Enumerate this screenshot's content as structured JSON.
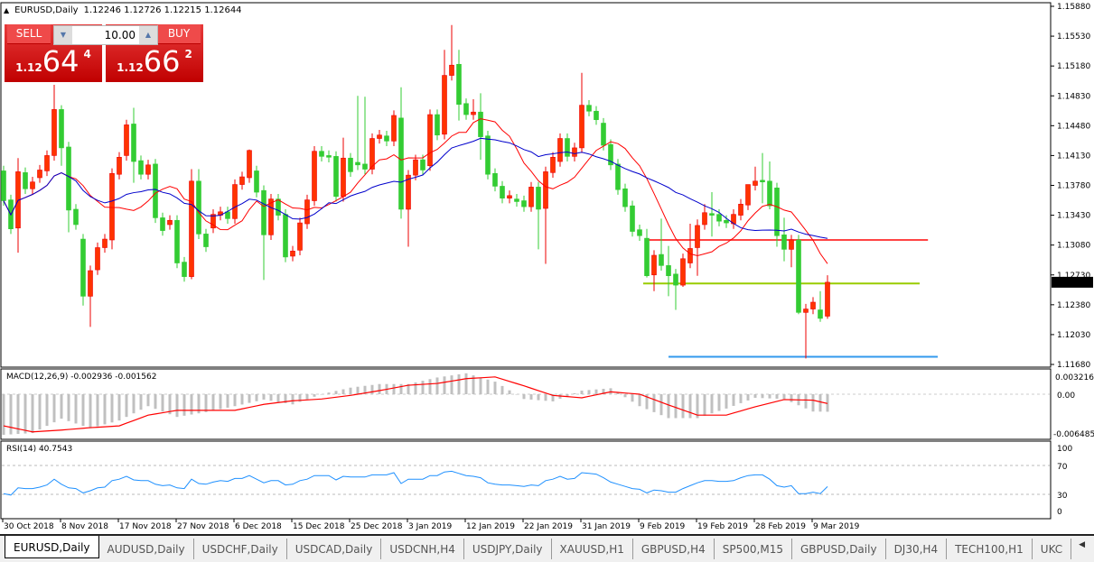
{
  "window": {
    "symbol_title": "EURUSD,Daily",
    "ohlc_readout": "1.12246 1.12726 1.12215 1.12644"
  },
  "trade_panel": {
    "sell_label": "SELL",
    "buy_label": "BUY",
    "lot_value": "10.00",
    "sell_price": {
      "prefix": "1.12",
      "big": "64",
      "small": "4"
    },
    "buy_price": {
      "prefix": "1.12",
      "big": "66",
      "small": "2"
    }
  },
  "price_axis": {
    "labels": [
      "1.15880",
      "1.15530",
      "1.15180",
      "1.14830",
      "1.14480",
      "1.14130",
      "1.13780",
      "1.13430",
      "1.13080",
      "1.12730",
      "1.12380",
      "1.12030",
      "1.11680"
    ],
    "current_price": "1.12644"
  },
  "indicators": {
    "macd": {
      "label": "MACD(12,26,9) -0.002936 -0.001562",
      "axis_labels": [
        "0.003216",
        "0.00",
        "-0.006485"
      ]
    },
    "rsi": {
      "label": "RSI(14) 40.7543",
      "axis_labels": [
        "100",
        "70",
        "30",
        "0"
      ]
    }
  },
  "time_axis": {
    "labels": [
      "30 Oct 2018",
      "8 Nov 2018",
      "17 Nov 2018",
      "27 Nov 2018",
      "6 Dec 2018",
      "15 Dec 2018",
      "25 Dec 2018",
      "3 Jan 2019",
      "12 Jan 2019",
      "22 Jan 2019",
      "31 Jan 2019",
      "9 Feb 2019",
      "19 Feb 2019",
      "28 Feb 2019",
      "9 Mar 2019"
    ]
  },
  "tabs": [
    {
      "label": "EURUSD,Daily",
      "active": true
    },
    {
      "label": "AUDUSD,Daily"
    },
    {
      "label": "USDCHF,Daily"
    },
    {
      "label": "USDCAD,Daily"
    },
    {
      "label": "USDCNH,H4"
    },
    {
      "label": "USDJPY,Daily"
    },
    {
      "label": "XAUUSD,H1"
    },
    {
      "label": "GBPUSD,H4"
    },
    {
      "label": "SP500,M15"
    },
    {
      "label": "GBPUSD,Daily"
    },
    {
      "label": "DJ30,H4"
    },
    {
      "label": "TECH100,H1"
    },
    {
      "label": "UKC"
    }
  ],
  "colors": {
    "bull": "#ff3300",
    "bear": "#33cc33",
    "ma_fast": "#ff0000",
    "ma_slow": "#0000cc",
    "macd_hist": "#c0c0c0",
    "macd_signal": "#ff0000",
    "rsi": "#1e90ff",
    "sell_buy": "#d42020"
  },
  "chart_data": {
    "type": "candlestick",
    "symbol": "EURUSD",
    "timeframe": "Daily",
    "ylim": [
      1.1168,
      1.1588
    ],
    "ohlc_open_close": [
      [
        1.1395,
        1.136
      ],
      [
        1.1361,
        1.1327
      ],
      [
        1.1328,
        1.1394
      ],
      [
        1.1393,
        1.1374
      ],
      [
        1.1374,
        1.1382
      ],
      [
        1.1387,
        1.1396
      ],
      [
        1.1395,
        1.1413
      ],
      [
        1.1413,
        1.1467
      ],
      [
        1.1467,
        1.1422
      ],
      [
        1.1423,
        1.1349
      ],
      [
        1.135,
        1.1332
      ],
      [
        1.1315,
        1.1248
      ],
      [
        1.1248,
        1.1278
      ],
      [
        1.1279,
        1.1305
      ],
      [
        1.1305,
        1.1315
      ],
      [
        1.1314,
        1.1392
      ],
      [
        1.1391,
        1.1411
      ],
      [
        1.1413,
        1.1449
      ],
      [
        1.145,
        1.1406
      ],
      [
        1.1407,
        1.1391
      ],
      [
        1.1391,
        1.1402
      ],
      [
        1.1403,
        1.134
      ],
      [
        1.134,
        1.1325
      ],
      [
        1.1332,
        1.1337
      ],
      [
        1.1337,
        1.1287
      ],
      [
        1.1288,
        1.1271
      ],
      [
        1.1271,
        1.1383
      ],
      [
        1.1383,
        1.1321
      ],
      [
        1.1321,
        1.1306
      ],
      [
        1.1328,
        1.1344
      ],
      [
        1.1343,
        1.1347
      ],
      [
        1.1347,
        1.1339
      ],
      [
        1.1339,
        1.1379
      ],
      [
        1.1379,
        1.1388
      ],
      [
        1.1387,
        1.1419
      ],
      [
        1.1395,
        1.137
      ],
      [
        1.1372,
        1.132
      ],
      [
        1.132,
        1.1362
      ],
      [
        1.1362,
        1.1343
      ],
      [
        1.1344,
        1.1294
      ],
      [
        1.1295,
        1.1301
      ],
      [
        1.1302,
        1.1334
      ],
      [
        1.1333,
        1.1361
      ],
      [
        1.136,
        1.1418
      ],
      [
        1.1418,
        1.1412
      ],
      [
        1.1413,
        1.1411
      ],
      [
        1.1412,
        1.1365
      ],
      [
        1.1365,
        1.141
      ],
      [
        1.141,
        1.1394
      ],
      [
        1.1405,
        1.1402
      ],
      [
        1.1403,
        1.1397
      ],
      [
        1.1397,
        1.1433
      ],
      [
        1.1433,
        1.1437
      ],
      [
        1.1436,
        1.143
      ],
      [
        1.143,
        1.146
      ],
      [
        1.1457,
        1.135
      ],
      [
        1.135,
        1.139
      ],
      [
        1.139,
        1.1408
      ],
      [
        1.1408,
        1.1396
      ],
      [
        1.1401,
        1.1461
      ],
      [
        1.1461,
        1.1437
      ],
      [
        1.1438,
        1.1507
      ],
      [
        1.1507,
        1.1519
      ],
      [
        1.152,
        1.1473
      ],
      [
        1.1474,
        1.1461
      ],
      [
        1.1461,
        1.1464
      ],
      [
        1.1464,
        1.1435
      ],
      [
        1.1436,
        1.1391
      ],
      [
        1.1392,
        1.1377
      ],
      [
        1.1377,
        1.1363
      ],
      [
        1.1363,
        1.1366
      ],
      [
        1.1362,
        1.1359
      ],
      [
        1.136,
        1.1353
      ],
      [
        1.1353,
        1.1376
      ],
      [
        1.1376,
        1.135
      ],
      [
        1.1351,
        1.1394
      ],
      [
        1.1393,
        1.1411
      ],
      [
        1.1406,
        1.1433
      ],
      [
        1.1433,
        1.1412
      ],
      [
        1.1412,
        1.1422
      ],
      [
        1.1422,
        1.1472
      ],
      [
        1.1472,
        1.1465
      ],
      [
        1.1465,
        1.1455
      ],
      [
        1.1451,
        1.1425
      ],
      [
        1.1426,
        1.1402
      ],
      [
        1.1403,
        1.1373
      ],
      [
        1.1374,
        1.1353
      ],
      [
        1.1354,
        1.1324
      ],
      [
        1.1326,
        1.1319
      ],
      [
        1.1316,
        1.1272
      ],
      [
        1.1273,
        1.1296
      ],
      [
        1.1297,
        1.1284
      ],
      [
        1.1284,
        1.1272
      ],
      [
        1.1274,
        1.1261
      ],
      [
        1.1261,
        1.1292
      ],
      [
        1.1287,
        1.1304
      ],
      [
        1.1305,
        1.1331
      ],
      [
        1.1332,
        1.1346
      ],
      [
        1.1345,
        1.1343
      ],
      [
        1.1344,
        1.1336
      ],
      [
        1.1337,
        1.1334
      ],
      [
        1.1333,
        1.1344
      ],
      [
        1.1343,
        1.1356
      ],
      [
        1.1355,
        1.1379
      ],
      [
        1.1378,
        1.1383
      ],
      [
        1.1384,
        1.1382
      ],
      [
        1.1383,
        1.1354
      ],
      [
        1.1375,
        1.1319
      ],
      [
        1.132,
        1.1303
      ],
      [
        1.1303,
        1.1314
      ],
      [
        1.1314,
        1.1229
      ],
      [
        1.1229,
        1.1233
      ],
      [
        1.1233,
        1.1241
      ],
      [
        1.1232,
        1.1222
      ],
      [
        1.12246,
        1.12644
      ]
    ],
    "high_low": {
      "2": {
        "h": 1.141,
        "l": 1.1299
      },
      "7": {
        "h": 1.1496
      },
      "8": {
        "h": 1.1472,
        "l": 1.1401
      },
      "9": {
        "l": 1.1323
      },
      "11": {
        "l": 1.1237
      },
      "12": {
        "l": 1.1212
      },
      "15": {
        "l": 1.1303
      },
      "18": {
        "h": 1.1469,
        "l": 1.1381
      },
      "26": {
        "h": 1.1397,
        "l": 1.1268
      },
      "27": {
        "h": 1.1397,
        "l": 1.1315
      },
      "34": {
        "h": 1.142
      },
      "36": {
        "l": 1.1267
      },
      "47": {
        "h": 1.1434
      },
      "49": {
        "h": 1.1483
      },
      "50": {
        "h": 1.1482
      },
      "55": {
        "h": 1.1493,
        "l": 1.1339
      },
      "56": {
        "l": 1.1306
      },
      "61": {
        "h": 1.1537
      },
      "62": {
        "h": 1.1566
      },
      "63": {
        "h": 1.1537,
        "l": 1.1454
      },
      "65": {
        "h": 1.1479
      },
      "66": {
        "h": 1.1486,
        "l": 1.1408
      },
      "74": {
        "l": 1.1303
      },
      "75": {
        "l": 1.1286
      },
      "80": {
        "h": 1.151
      },
      "89": {
        "h": 1.1327,
        "l": 1.127
      },
      "90": {
        "l": 1.1254
      },
      "91": {
        "h": 1.1339
      },
      "92": {
        "h": 1.1307,
        "l": 1.1248
      },
      "93": {
        "l": 1.1232
      },
      "94": {
        "l": 1.1259
      },
      "95": {
        "h": 1.1333
      },
      "96": {
        "h": 1.1338,
        "l": 1.1272
      },
      "97": {
        "h": 1.1356
      },
      "98": {
        "h": 1.137,
        "l": 1.1318
      },
      "103": {
        "h": 1.1371
      },
      "104": {
        "h": 1.14
      },
      "105": {
        "h": 1.1416,
        "l": 1.1357
      },
      "106": {
        "h": 1.1406,
        "l": 1.135
      },
      "107": {
        "l": 1.1306
      },
      "108": {
        "h": 1.134,
        "l": 1.1289
      },
      "109": {
        "l": 1.1282
      },
      "110": {
        "l": 1.1227
      },
      "111": {
        "h": 1.1239,
        "l": 1.1175
      },
      "113": {
        "h": 1.1254,
        "l": 1.1218
      },
      "114": {
        "h": 1.12726,
        "l": 1.12215
      }
    },
    "moving_averages": [
      {
        "color": "#ff0000",
        "period": 10
      },
      {
        "color": "#0000cc",
        "period": 20
      }
    ],
    "horizontal_lines": [
      {
        "price": 1.1314,
        "color": "#ff4444",
        "from_bar": 88.9,
        "to_bar": 127.9
      },
      {
        "price": 1.1263,
        "color": "#99cc00",
        "from_bar": 88.5,
        "to_bar": 126.75
      },
      {
        "price": 1.1177,
        "color": "#3399ee",
        "from_bar": 92,
        "to_bar": 129.25
      }
    ],
    "macd": {
      "ylim": [
        -0.006485,
        0.003216
      ],
      "sample_bars": [
        0,
        4,
        8,
        12,
        16,
        20,
        24,
        28,
        32,
        36,
        40,
        44,
        48,
        52,
        56,
        60,
        64,
        68,
        72,
        76,
        80,
        84,
        88,
        92,
        96,
        100,
        104,
        108,
        112,
        114
      ],
      "main": [
        -0.0068,
        -0.0065,
        -0.0041,
        -0.0057,
        -0.0044,
        -0.002,
        -0.0038,
        -0.003,
        -0.002,
        -0.0009,
        -0.0017,
        0.0,
        0.0011,
        0.0017,
        0.0017,
        0.0028,
        0.0035,
        0.0021,
        -0.0008,
        -0.0012,
        0.0006,
        0.001,
        -0.002,
        -0.004,
        -0.004,
        -0.0024,
        -0.0006,
        -0.0008,
        -0.0029,
        -0.002936
      ],
      "signal": [
        -0.0053,
        -0.0063,
        -0.006,
        -0.0056,
        -0.0053,
        -0.0035,
        -0.0027,
        -0.0027,
        -0.0027,
        -0.0017,
        -0.0011,
        -0.0008,
        -0.0002,
        0.0006,
        0.0015,
        0.0018,
        0.0026,
        0.0029,
        0.0014,
        -0.0002,
        -0.0006,
        0.0004,
        0.0,
        -0.0018,
        -0.0035,
        -0.0035,
        -0.0021,
        -0.0009,
        -0.001,
        -0.001562
      ]
    },
    "rsi": {
      "ylim": [
        0,
        100
      ],
      "levels": [
        30,
        70
      ],
      "values": [
        31,
        29,
        39,
        38,
        38,
        40,
        43,
        51,
        44,
        39,
        38,
        32,
        35,
        39,
        40,
        49,
        51,
        55,
        50,
        49,
        49,
        44,
        42,
        43,
        39,
        38,
        51,
        45,
        44,
        47,
        49,
        48,
        52,
        52,
        56,
        51,
        46,
        49,
        49,
        43,
        44,
        49,
        51,
        56,
        56,
        56,
        50,
        55,
        54,
        54,
        54,
        57,
        57,
        57,
        60,
        45,
        51,
        51,
        51,
        56,
        56,
        61,
        62,
        59,
        56,
        55,
        53,
        46,
        44,
        43,
        43,
        42,
        41,
        43,
        42,
        49,
        51,
        55,
        51,
        52,
        60,
        59,
        58,
        53,
        47,
        44,
        41,
        38,
        37,
        32,
        36,
        35,
        33,
        33,
        38,
        42,
        46,
        49,
        49,
        48,
        48,
        49,
        53,
        56,
        57,
        57,
        51,
        42,
        40,
        42,
        31,
        31,
        33,
        31,
        40.75
      ]
    }
  }
}
